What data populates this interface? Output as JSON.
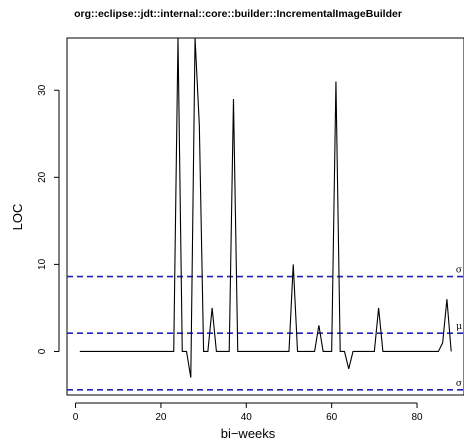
{
  "chart_data": {
    "type": "line",
    "title": "org::eclipse::jdt::internal::core::builder::IncrementalImageBuilder",
    "xlabel": "bi−weeks",
    "ylabel": "LOC",
    "xlim": [
      -2,
      91
    ],
    "ylim": [
      -5,
      36
    ],
    "x_ticks": [
      0,
      20,
      40,
      60,
      80
    ],
    "y_ticks": [
      0,
      10,
      20,
      30
    ],
    "grid": false,
    "series": [
      {
        "color": "#000000",
        "x": [
          1,
          2,
          3,
          4,
          5,
          6,
          7,
          8,
          9,
          10,
          11,
          12,
          13,
          14,
          15,
          16,
          17,
          18,
          19,
          20,
          21,
          22,
          23,
          24,
          25,
          26,
          27,
          28,
          29,
          30,
          31,
          32,
          33,
          34,
          35,
          36,
          37,
          38,
          39,
          40,
          41,
          42,
          43,
          44,
          45,
          46,
          47,
          48,
          49,
          50,
          51,
          52,
          53,
          54,
          55,
          56,
          57,
          58,
          59,
          60,
          61,
          62,
          63,
          64,
          65,
          66,
          67,
          68,
          69,
          70,
          71,
          72,
          73,
          74,
          75,
          76,
          77,
          78,
          79,
          80,
          81,
          82,
          83,
          84,
          85,
          86,
          87,
          88
        ],
        "values": [
          0,
          0,
          0,
          0,
          0,
          0,
          0,
          0,
          0,
          0,
          0,
          0,
          0,
          0,
          0,
          0,
          0,
          0,
          0,
          0,
          0,
          0,
          0,
          36,
          0,
          0,
          -3,
          36,
          26,
          0,
          0,
          5,
          0,
          0,
          0,
          0,
          29,
          0,
          0,
          0,
          0,
          0,
          0,
          0,
          0,
          0,
          0,
          0,
          0,
          0,
          10,
          0,
          0,
          0,
          0,
          0,
          3,
          0,
          0,
          0,
          31,
          0,
          0,
          -2,
          0,
          0,
          0,
          0,
          0,
          0,
          5,
          0,
          0,
          0,
          0,
          0,
          0,
          0,
          0,
          0,
          0,
          0,
          0,
          0,
          0,
          1,
          6,
          0
        ]
      }
    ],
    "reference_lines": [
      {
        "label": "σ",
        "value": 8.6,
        "color": "#2222bb"
      },
      {
        "label": "μ",
        "value": 2.1,
        "color": "#2222bb"
      },
      {
        "label": "σ",
        "value": -4.4,
        "color": "#2222bb"
      }
    ]
  }
}
